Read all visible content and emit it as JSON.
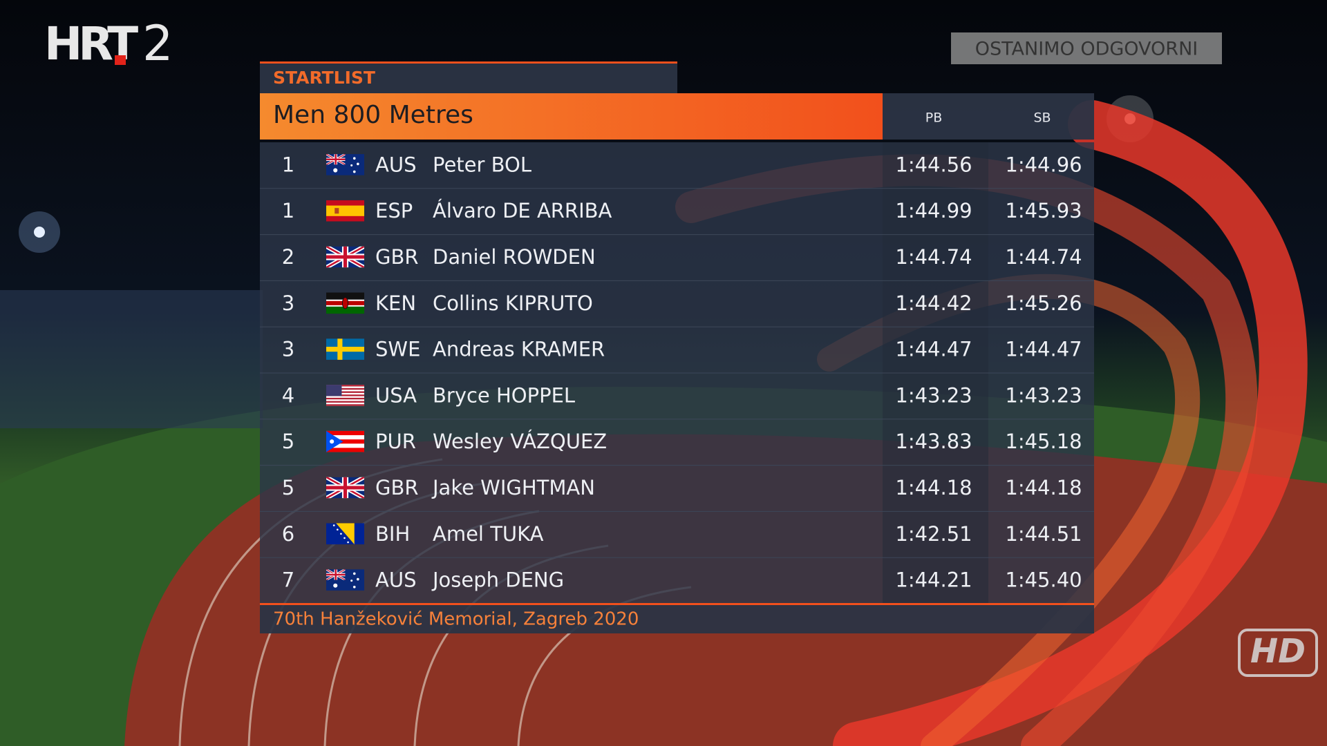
{
  "logo": {
    "channel": "HRT",
    "number": "2"
  },
  "badge": "OSTANIMO ODGOVORNI",
  "startlist": {
    "label": "STARTLIST",
    "title": "Men 800 Metres",
    "columns": [
      "PB",
      "SB"
    ],
    "rows": [
      {
        "lane": 1,
        "country": "AUS",
        "name": "Peter BOL",
        "pb": "1:44.56",
        "sb": "1:44.96"
      },
      {
        "lane": 1,
        "country": "ESP",
        "name": "Álvaro DE ARRIBA",
        "pb": "1:44.99",
        "sb": "1:45.93"
      },
      {
        "lane": 2,
        "country": "GBR",
        "name": "Daniel ROWDEN",
        "pb": "1:44.74",
        "sb": "1:44.74"
      },
      {
        "lane": 3,
        "country": "KEN",
        "name": "Collins KIPRUTO",
        "pb": "1:44.42",
        "sb": "1:45.26"
      },
      {
        "lane": 3,
        "country": "SWE",
        "name": "Andreas KRAMER",
        "pb": "1:44.47",
        "sb": "1:44.47"
      },
      {
        "lane": 4,
        "country": "USA",
        "name": "Bryce HOPPEL",
        "pb": "1:43.23",
        "sb": "1:43.23"
      },
      {
        "lane": 5,
        "country": "PUR",
        "name": "Wesley VÁZQUEZ",
        "pb": "1:43.83",
        "sb": "1:45.18"
      },
      {
        "lane": 5,
        "country": "GBR",
        "name": "Jake WIGHTMAN",
        "pb": "1:44.18",
        "sb": "1:44.18"
      },
      {
        "lane": 6,
        "country": "BIH",
        "name": "Amel TUKA",
        "pb": "1:42.51",
        "sb": "1:44.51"
      },
      {
        "lane": 7,
        "country": "AUS",
        "name": "Joseph DENG",
        "pb": "1:44.21",
        "sb": "1:45.40"
      }
    ],
    "footer": "70th Hanžeković Memorial, Zagreb 2020"
  },
  "hd": "HD"
}
